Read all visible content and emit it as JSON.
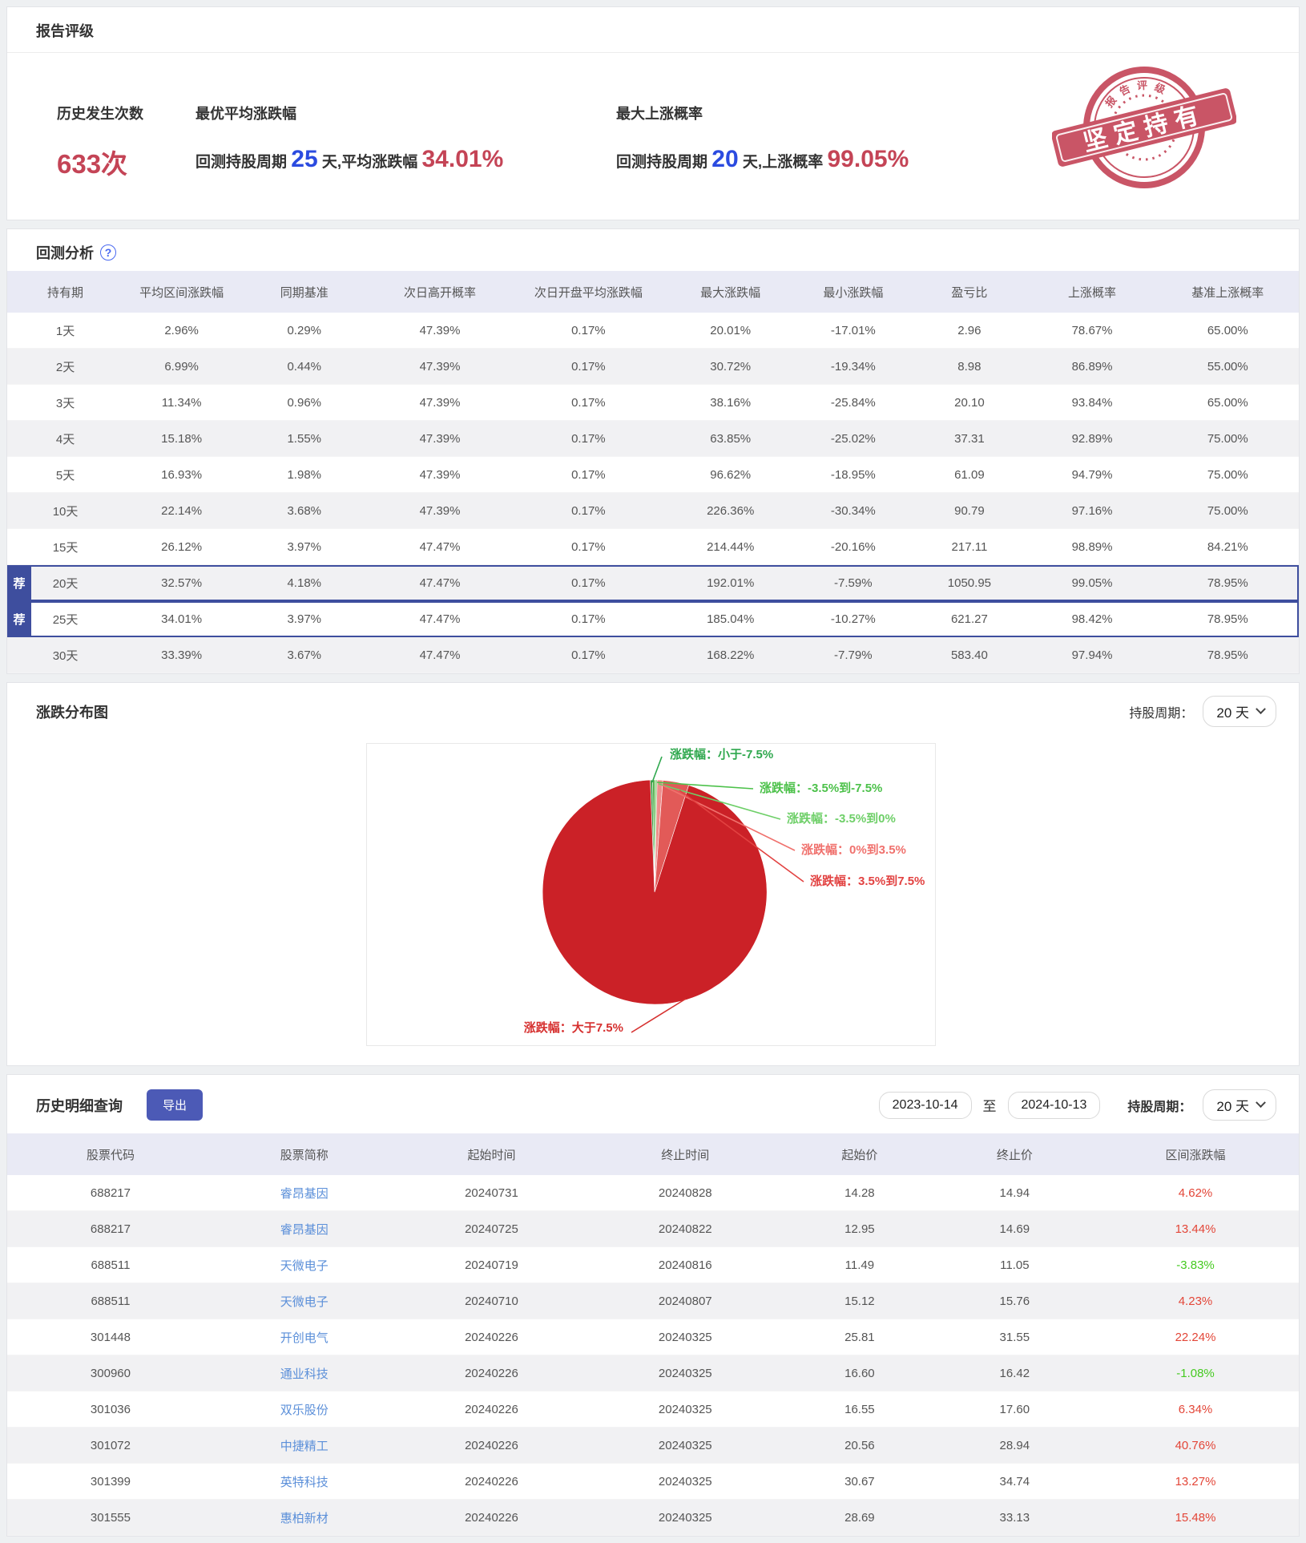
{
  "report": {
    "title": "报告评级",
    "stat1_label": "历史发生次数",
    "stat1_value": "633次",
    "stat2_label": "最优平均涨跌幅",
    "stat2_prefix": "回测持股周期 ",
    "stat2_num": "25",
    "stat2_mid": " 天,平均涨跌幅 ",
    "stat2_value": "34.01%",
    "stat3_label": "最大上涨概率",
    "stat3_prefix": "回测持股周期 ",
    "stat3_num": "20",
    "stat3_mid": " 天,上涨概率 ",
    "stat3_value": "99.05%",
    "stamp_arc_text": "报 告 评 级",
    "stamp_banner": "坚定持有"
  },
  "backtest": {
    "title": "回测分析",
    "help_icon": "?",
    "badge": "荐",
    "columns": [
      "持有期",
      "平均区间涨跌幅",
      "同期基准",
      "次日高开概率",
      "次日开盘平均涨跌幅",
      "最大涨跌幅",
      "最小涨跌幅",
      "盈亏比",
      "上涨概率",
      "基准上涨概率"
    ],
    "rows": [
      {
        "period": "1天",
        "cells": [
          "2.96%",
          "0.29%",
          "47.39%",
          "0.17%",
          "20.01%",
          "-17.01%",
          "2.96",
          "78.67%",
          "65.00%"
        ],
        "rec": false
      },
      {
        "period": "2天",
        "cells": [
          "6.99%",
          "0.44%",
          "47.39%",
          "0.17%",
          "30.72%",
          "-19.34%",
          "8.98",
          "86.89%",
          "55.00%"
        ],
        "rec": false
      },
      {
        "period": "3天",
        "cells": [
          "11.34%",
          "0.96%",
          "47.39%",
          "0.17%",
          "38.16%",
          "-25.84%",
          "20.10",
          "93.84%",
          "65.00%"
        ],
        "rec": false
      },
      {
        "period": "4天",
        "cells": [
          "15.18%",
          "1.55%",
          "47.39%",
          "0.17%",
          "63.85%",
          "-25.02%",
          "37.31",
          "92.89%",
          "75.00%"
        ],
        "rec": false
      },
      {
        "period": "5天",
        "cells": [
          "16.93%",
          "1.98%",
          "47.39%",
          "0.17%",
          "96.62%",
          "-18.95%",
          "61.09",
          "94.79%",
          "75.00%"
        ],
        "rec": false
      },
      {
        "period": "10天",
        "cells": [
          "22.14%",
          "3.68%",
          "47.39%",
          "0.17%",
          "226.36%",
          "-30.34%",
          "90.79",
          "97.16%",
          "75.00%"
        ],
        "rec": false
      },
      {
        "period": "15天",
        "cells": [
          "26.12%",
          "3.97%",
          "47.47%",
          "0.17%",
          "214.44%",
          "-20.16%",
          "217.11",
          "98.89%",
          "84.21%"
        ],
        "rec": false
      },
      {
        "period": "20天",
        "cells": [
          "32.57%",
          "4.18%",
          "47.47%",
          "0.17%",
          "192.01%",
          "-7.59%",
          "1050.95",
          "99.05%",
          "78.95%"
        ],
        "rec": true
      },
      {
        "period": "25天",
        "cells": [
          "34.01%",
          "3.97%",
          "47.47%",
          "0.17%",
          "185.04%",
          "-10.27%",
          "621.27",
          "98.42%",
          "78.95%"
        ],
        "rec": true
      },
      {
        "period": "30天",
        "cells": [
          "33.39%",
          "3.67%",
          "47.47%",
          "0.17%",
          "168.22%",
          "-7.79%",
          "583.40",
          "97.94%",
          "78.95%"
        ],
        "rec": false
      }
    ]
  },
  "distribution": {
    "title": "涨跌分布图",
    "period_label": "持股周期：",
    "period_value": "20 天",
    "chart_data": {
      "type": "pie",
      "title": "涨跌分布图",
      "hold_period": "20 天",
      "start_angle_deg": -2.2,
      "legend_position": "labels-with-leader-lines",
      "slices": [
        {
          "label": "涨跌幅：小于-7.5%",
          "value": 0.33,
          "color": "#3f9e4a",
          "label_color": "#2fa84e"
        },
        {
          "label": "涨跌幅：-3.5%到-7.5%",
          "value": 0.33,
          "color": "#55b24e",
          "label_color": "#4cc14a"
        },
        {
          "label": "涨跌幅：-3.5%到0%",
          "value": 0.31,
          "color": "#8fd282",
          "label_color": "#6ecf68"
        },
        {
          "label": "涨跌幅：0%到3.5%",
          "value": 0.81,
          "color": "#ef8e8c",
          "label_color": "#f0716d"
        },
        {
          "label": "涨跌幅：3.5%到7.5%",
          "value": 3.75,
          "color": "#e25a58",
          "label_color": "#e24241"
        },
        {
          "label": "涨跌幅：大于7.5%",
          "value": 94.47,
          "color": "#cb2127",
          "label_color": "#d6302f"
        }
      ]
    }
  },
  "history": {
    "title": "历史明细查询",
    "export_label": "导出",
    "date_from": "2023-10-14",
    "to_label": "至",
    "date_to": "2024-10-13",
    "period_label": "持股周期：",
    "period_value": "20 天",
    "columns": [
      "股票代码",
      "股票简称",
      "起始时间",
      "终止时间",
      "起始价",
      "终止价",
      "区间涨跌幅"
    ],
    "rows": [
      {
        "code": "688217",
        "name": "睿昂基因",
        "start": "20240731",
        "end": "20240828",
        "open": "14.28",
        "close": "14.94",
        "change": "4.62%"
      },
      {
        "code": "688217",
        "name": "睿昂基因",
        "start": "20240725",
        "end": "20240822",
        "open": "12.95",
        "close": "14.69",
        "change": "13.44%"
      },
      {
        "code": "688511",
        "name": "天微电子",
        "start": "20240719",
        "end": "20240816",
        "open": "11.49",
        "close": "11.05",
        "change": "-3.83%"
      },
      {
        "code": "688511",
        "name": "天微电子",
        "start": "20240710",
        "end": "20240807",
        "open": "15.12",
        "close": "15.76",
        "change": "4.23%"
      },
      {
        "code": "301448",
        "name": "开创电气",
        "start": "20240226",
        "end": "20240325",
        "open": "25.81",
        "close": "31.55",
        "change": "22.24%"
      },
      {
        "code": "300960",
        "name": "通业科技",
        "start": "20240226",
        "end": "20240325",
        "open": "16.60",
        "close": "16.42",
        "change": "-1.08%"
      },
      {
        "code": "301036",
        "name": "双乐股份",
        "start": "20240226",
        "end": "20240325",
        "open": "16.55",
        "close": "17.60",
        "change": "6.34%"
      },
      {
        "code": "301072",
        "name": "中捷精工",
        "start": "20240226",
        "end": "20240325",
        "open": "20.56",
        "close": "28.94",
        "change": "40.76%"
      },
      {
        "code": "301399",
        "name": "英特科技",
        "start": "20240226",
        "end": "20240325",
        "open": "30.67",
        "close": "34.74",
        "change": "13.27%"
      },
      {
        "code": "301555",
        "name": "惠柏新材",
        "start": "20240226",
        "end": "20240325",
        "open": "28.69",
        "close": "33.13",
        "change": "15.48%"
      }
    ]
  }
}
